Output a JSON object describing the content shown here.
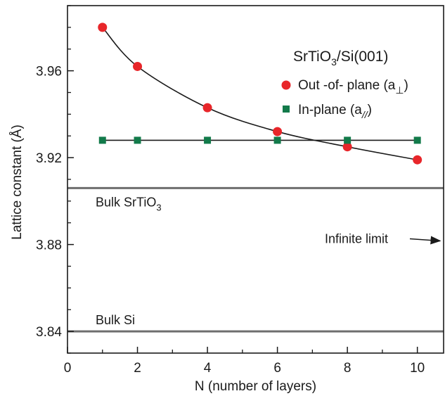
{
  "chart_data": {
    "type": "scatter",
    "xlabel": "N (number of layers)",
    "ylabel": "Lattice constant (Å)",
    "xlim": [
      0,
      10.75
    ],
    "ylim": [
      3.83,
      3.99
    ],
    "xticks": [
      0,
      2,
      4,
      6,
      8,
      10
    ],
    "xtick_labels": [
      "0",
      "2",
      "4",
      "6",
      "8",
      "10"
    ],
    "yticks": [
      3.84,
      3.88,
      3.92,
      3.96
    ],
    "ytick_labels": [
      "3.84",
      "3.88",
      "3.92",
      "3.96"
    ],
    "legend": {
      "placement": "top-right",
      "title_main": "SrTiO",
      "title_sub": "3",
      "title_rest": "/Si(001)"
    },
    "series": [
      {
        "name": "Out -of- plane (a⊥)",
        "label_main": "Out -of- plane (a",
        "label_sub": "⊥",
        "label_end": ")",
        "marker": "circle",
        "color": "#e8262a",
        "x": [
          1,
          2,
          4,
          6,
          8,
          10
        ],
        "y": [
          3.98,
          3.962,
          3.943,
          3.932,
          3.925,
          3.919
        ]
      },
      {
        "name": "In-plane (a//)",
        "label_main": "In-plane (a",
        "label_sub": "//",
        "label_end": ")",
        "marker": "square",
        "color": "#127a4a",
        "x": [
          1,
          2,
          4,
          6,
          8,
          10
        ],
        "y": [
          3.928,
          3.928,
          3.928,
          3.928,
          3.928,
          3.928
        ]
      }
    ],
    "reference_lines": [
      {
        "y": 3.906,
        "label_main": "Bulk SrTiO",
        "label_sub": "3"
      },
      {
        "y": 3.84,
        "label_main": "Bulk Si",
        "label_sub": ""
      }
    ],
    "annotation": {
      "text": "Infinite limit",
      "arrow_y": 3.882
    },
    "colors": {
      "fit_line": "#1a1a1a",
      "axis": "#1a1a1a",
      "ref_line": "#6e6e6e"
    },
    "grid": false
  }
}
